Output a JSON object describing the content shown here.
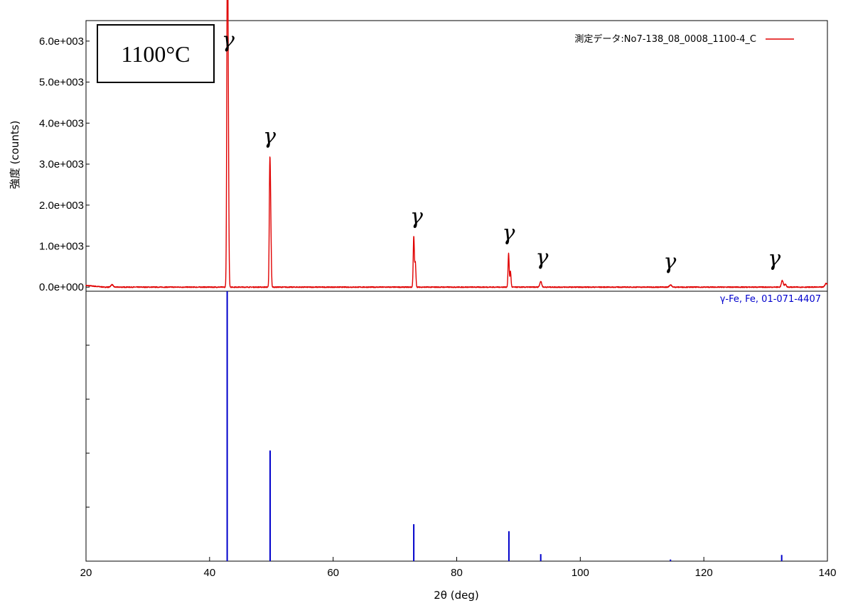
{
  "chart_data": {
    "type": "line",
    "xlabel": "2θ (deg)",
    "ylabel": "強度 (counts)",
    "xlim": [
      20,
      140
    ],
    "ylim": [
      -100,
      6500
    ],
    "x_ticks": [
      20,
      40,
      60,
      80,
      100,
      120,
      140
    ],
    "y_ticks": [
      {
        "value": 0,
        "label": "0.0e+000"
      },
      {
        "value": 1000,
        "label": "1.0e+003"
      },
      {
        "value": 2000,
        "label": "2.0e+003"
      },
      {
        "value": 3000,
        "label": "3.0e+003"
      },
      {
        "value": 4000,
        "label": "4.0e+003"
      },
      {
        "value": 5000,
        "label": "5.0e+003"
      },
      {
        "value": 6000,
        "label": "6.0e+003"
      }
    ],
    "legend_position": "top-right",
    "temperature_label": "1100°C",
    "series": [
      {
        "name": "測定データ:No7-138_08_0008_1100-4_C",
        "color": "#e00000",
        "baseline": 0,
        "peaks": [
          {
            "x": 24.2,
            "height": 60,
            "width": 0.18
          },
          {
            "x": 42.85,
            "height": 5400,
            "width": 0.09
          },
          {
            "x": 42.95,
            "height": 4100,
            "width": 0.09
          },
          {
            "x": 43.05,
            "height": 1900,
            "width": 0.09
          },
          {
            "x": 49.75,
            "height": 2800,
            "width": 0.09
          },
          {
            "x": 49.9,
            "height": 1300,
            "width": 0.09
          },
          {
            "x": 73.05,
            "height": 1230,
            "width": 0.09
          },
          {
            "x": 73.3,
            "height": 600,
            "width": 0.09
          },
          {
            "x": 88.4,
            "height": 820,
            "width": 0.09
          },
          {
            "x": 88.7,
            "height": 380,
            "width": 0.09
          },
          {
            "x": 93.6,
            "height": 140,
            "width": 0.15
          },
          {
            "x": 114.6,
            "height": 55,
            "width": 0.18
          },
          {
            "x": 132.7,
            "height": 160,
            "width": 0.15
          },
          {
            "x": 133.2,
            "height": 70,
            "width": 0.15
          },
          {
            "x": 139.8,
            "height": 90,
            "width": 0.2
          }
        ]
      }
    ],
    "peak_annotations": [
      {
        "x": 43,
        "y": 5850,
        "label": "γ"
      },
      {
        "x": 49.7,
        "y": 3500,
        "label": "γ"
      },
      {
        "x": 73.5,
        "y": 1550,
        "label": "γ"
      },
      {
        "x": 88.4,
        "y": 1150,
        "label": "γ"
      },
      {
        "x": 93.8,
        "y": 550,
        "label": "γ"
      },
      {
        "x": 114.5,
        "y": 450,
        "label": "γ"
      },
      {
        "x": 131.4,
        "y": 520,
        "label": "γ"
      }
    ],
    "reference": {
      "label": "γ-Fe, Fe, 01-071-4407",
      "color": "#0000cc",
      "ylim": [
        0,
        100
      ],
      "sticks": [
        {
          "x": 42.85,
          "value": 100
        },
        {
          "x": 49.8,
          "value": 41
        },
        {
          "x": 73.05,
          "value": 13.7
        },
        {
          "x": 88.45,
          "value": 11.1
        },
        {
          "x": 93.6,
          "value": 2.6
        },
        {
          "x": 114.6,
          "value": 0.6
        },
        {
          "x": 132.6,
          "value": 2.3
        }
      ]
    }
  }
}
